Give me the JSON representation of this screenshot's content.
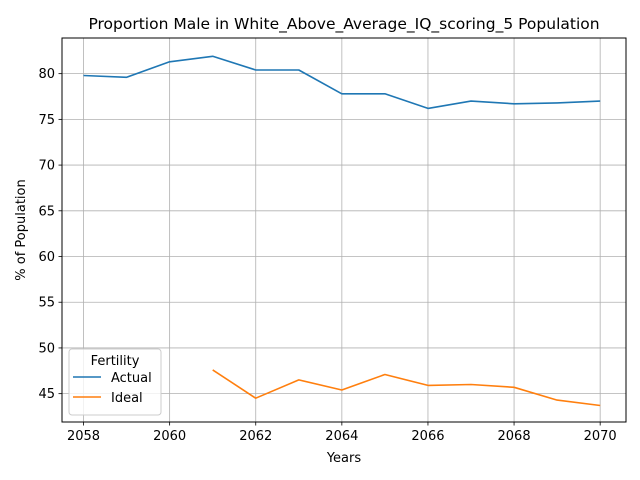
{
  "chart_data": {
    "type": "line",
    "title": "Proportion Male in White_Above_Average_IQ_scoring_5 Population",
    "xlabel": "Years",
    "ylabel": "% of Population",
    "xlim": [
      2057.5,
      2070.6
    ],
    "ylim": [
      41.9,
      83.9
    ],
    "xticks": [
      2058,
      2060,
      2062,
      2064,
      2066,
      2068,
      2070
    ],
    "yticks": [
      45,
      50,
      55,
      60,
      65,
      70,
      75,
      80
    ],
    "grid": true,
    "legend": {
      "title": "Fertility",
      "placement": "lower-left"
    },
    "series": [
      {
        "name": "Actual",
        "color": "#1f77b4",
        "x": [
          2058,
          2059,
          2060,
          2061,
          2062,
          2063,
          2064,
          2065,
          2066,
          2067,
          2068,
          2069,
          2070
        ],
        "y": [
          79.8,
          79.6,
          81.3,
          81.9,
          80.4,
          80.4,
          77.8,
          77.8,
          76.2,
          77.0,
          76.7,
          76.8,
          77.0
        ]
      },
      {
        "name": "Ideal",
        "color": "#ff7f0e",
        "x": [
          2061,
          2062,
          2063,
          2064,
          2065,
          2066,
          2067,
          2068,
          2069,
          2070
        ],
        "y": [
          47.6,
          44.5,
          46.5,
          45.4,
          47.1,
          45.9,
          46.0,
          45.7,
          44.3,
          43.7
        ]
      }
    ]
  }
}
